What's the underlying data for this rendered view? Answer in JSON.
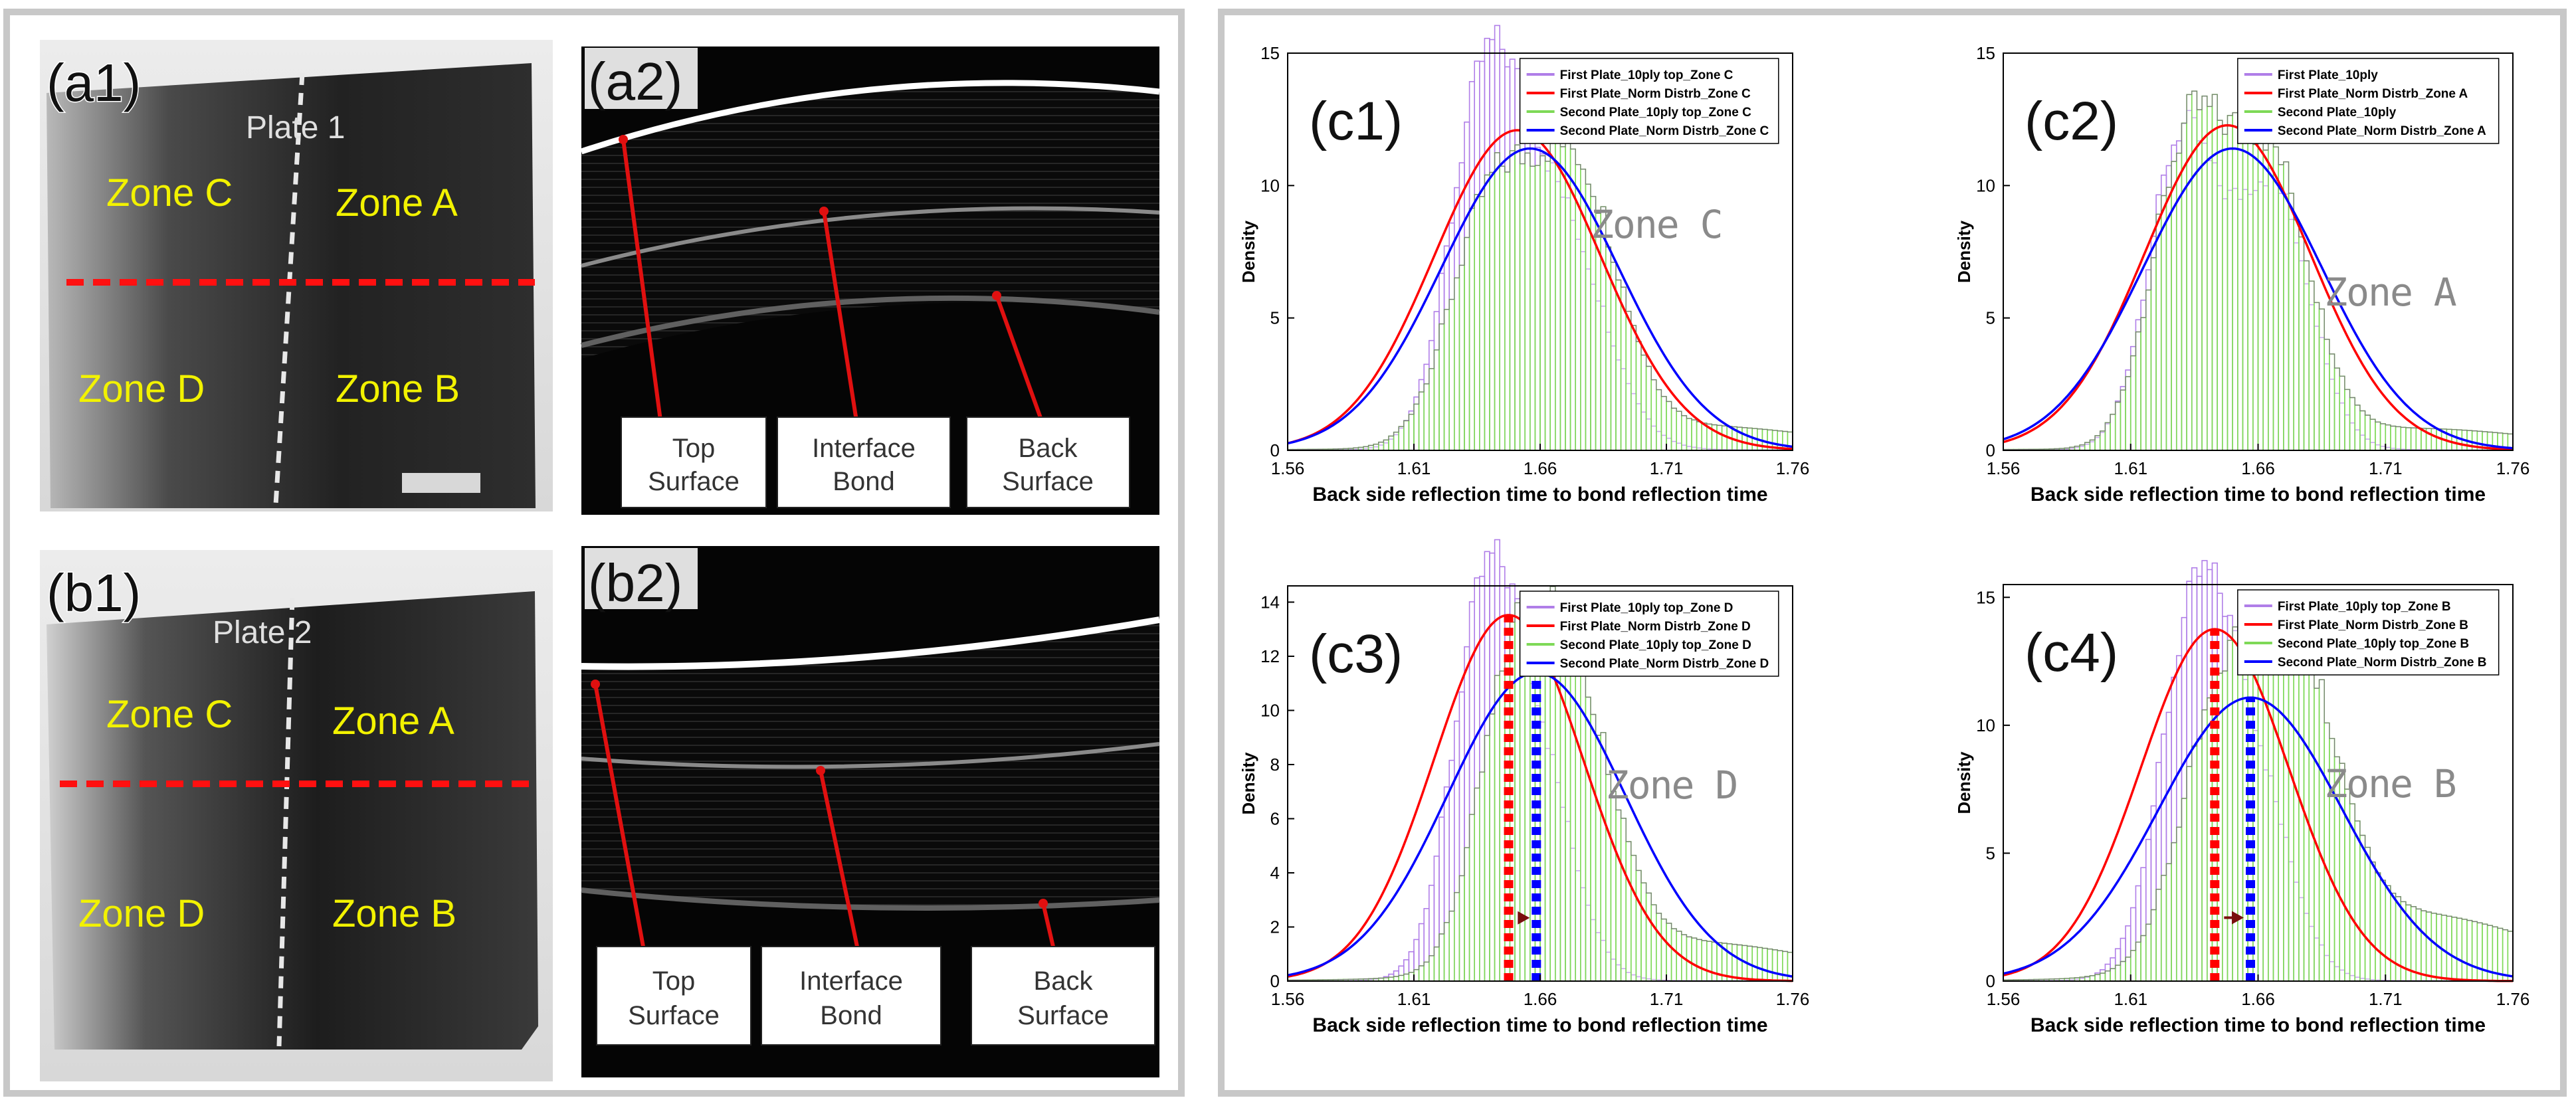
{
  "photos": {
    "a1": {
      "label": "(a1)",
      "plate": "Plate 1",
      "zones": [
        "Zone C",
        "Zone A",
        "Zone D",
        "Zone B"
      ]
    },
    "b1": {
      "label": "(b1)",
      "plate": "Plate 2",
      "zones": [
        "Zone C",
        "Zone A",
        "Zone D",
        "Zone B"
      ]
    },
    "a2": {
      "label": "(a2)",
      "callouts": [
        [
          "Top",
          "Surface"
        ],
        [
          "Interface",
          "Bond"
        ],
        [
          "Back",
          "Surface"
        ]
      ]
    },
    "b2": {
      "label": "(b2)",
      "callouts": [
        [
          "Top",
          "Surface"
        ],
        [
          "Interface",
          "Bond"
        ],
        [
          "Back",
          "Surface"
        ]
      ]
    }
  },
  "colors": {
    "first_plate_hist": "#b07ee8",
    "first_plate_fit": "#ff0000",
    "second_plate_hist": "#7ed957",
    "second_plate_fit": "#0000ff",
    "zone_text": "#f2f200",
    "cut_line": "#ff1010",
    "zone_label": "#8a8a8a"
  },
  "chart_data": [
    {
      "id": "c1",
      "label": "(c1)",
      "zone": "Zone C",
      "type": "histogram+line",
      "xlabel": "Back side reflection time to bond reflection time",
      "ylabel": "Density",
      "xlim": [
        1.56,
        1.76
      ],
      "ylim": [
        0,
        15
      ],
      "xticks": [
        "1.56",
        "1.61",
        "1.66",
        "1.71",
        "1.76"
      ],
      "yticks": [
        "0",
        "5",
        "10",
        "15"
      ],
      "legend": [
        "First Plate_10ply top_Zone C",
        "First Plate_Norm Distrb_Zone C",
        "Second Plate_10ply top_Zone C",
        "Second Plate_Norm Distrb_Zone C"
      ],
      "first_fit": {
        "mean": 1.651,
        "sd": 0.033
      },
      "second_fit": {
        "mean": 1.656,
        "sd": 0.035
      },
      "first_peaks": [
        [
          1.638,
          0.014,
          12.6
        ],
        [
          1.667,
          0.018,
          8.6
        ]
      ],
      "second_peaks": [
        [
          1.64,
          0.016,
          8.6
        ],
        [
          1.674,
          0.017,
          9.8
        ]
      ],
      "bg_level": 0.9
    },
    {
      "id": "c2",
      "label": "(c2)",
      "zone": "Zone A",
      "type": "histogram+line",
      "xlabel": "Back side reflection time to bond reflection time",
      "ylabel": "Density",
      "xlim": [
        1.56,
        1.76
      ],
      "ylim": [
        0,
        15
      ],
      "xticks": [
        "1.56",
        "1.61",
        "1.66",
        "1.71",
        "1.76"
      ],
      "yticks": [
        "0",
        "5",
        "10",
        "15"
      ],
      "legend": [
        "First Plate_10ply",
        "First Plate_Norm Distrb_Zone A",
        "Second Plate_10ply",
        "Second Plate_Norm Distrb_Zone A"
      ],
      "first_fit": {
        "mean": 1.648,
        "sd": 0.0325
      },
      "second_fit": {
        "mean": 1.65,
        "sd": 0.035
      },
      "first_peaks": [
        [
          1.63,
          0.013,
          11.5
        ],
        [
          1.665,
          0.015,
          10.0
        ]
      ],
      "second_peaks": [
        [
          1.632,
          0.014,
          10.8
        ],
        [
          1.664,
          0.016,
          10.6
        ]
      ],
      "bg_level": 0.8
    },
    {
      "id": "c3",
      "label": "(c3)",
      "zone": "Zone D",
      "type": "histogram+line",
      "xlabel": "Back side reflection time to bond reflection time",
      "ylabel": "Density",
      "xlim": [
        1.56,
        1.76
      ],
      "ylim": [
        0,
        14.6
      ],
      "xticks": [
        "1.56",
        "1.61",
        "1.66",
        "1.71",
        "1.76"
      ],
      "yticks": [
        "0",
        "2",
        "4",
        "6",
        "8",
        "10",
        "12",
        "14"
      ],
      "legend": [
        "First Plate_10ply top_Zone D",
        "First Plate_Norm Distrb_Zone D",
        "Second Plate_10ply top_Zone D",
        "Second Plate_Norm Distrb_Zone D"
      ],
      "first_fit": {
        "mean": 1.6475,
        "sd": 0.0295
      },
      "second_fit": {
        "mean": 1.6585,
        "sd": 0.035
      },
      "first_peaks": [
        [
          1.638,
          0.013,
          13.2
        ],
        [
          1.66,
          0.014,
          7.0
        ]
      ],
      "second_peaks": [
        [
          1.648,
          0.014,
          8.4
        ],
        [
          1.672,
          0.017,
          10.0
        ]
      ],
      "bg_level": 1.4,
      "vlines": [
        1.6475,
        1.6585
      ]
    },
    {
      "id": "c4",
      "label": "(c4)",
      "zone": "Zone B",
      "type": "histogram+line",
      "xlabel": "Back side reflection time to bond reflection time",
      "ylabel": "Density",
      "xlim": [
        1.56,
        1.76
      ],
      "ylim": [
        0,
        15.5
      ],
      "xticks": [
        "1.56",
        "1.61",
        "1.66",
        "1.71",
        "1.76"
      ],
      "yticks": [
        "0",
        "5",
        "10",
        "15"
      ],
      "legend": [
        "First Plate_10ply top_Zone B",
        "First Plate_Norm Distrb_Zone B",
        "Second Plate_10ply top_Zone B",
        "Second Plate_Norm Distrb_Zone B"
      ],
      "first_fit": {
        "mean": 1.643,
        "sd": 0.029
      },
      "second_fit": {
        "mean": 1.657,
        "sd": 0.036
      },
      "first_peaks": [
        [
          1.636,
          0.014,
          14.2
        ],
        [
          1.66,
          0.014,
          6.5
        ]
      ],
      "second_peaks": [
        [
          1.645,
          0.016,
          9.0
        ],
        [
          1.675,
          0.017,
          10.6
        ]
      ],
      "bg_level": 2.6,
      "vlines": [
        1.643,
        1.657
      ]
    }
  ]
}
